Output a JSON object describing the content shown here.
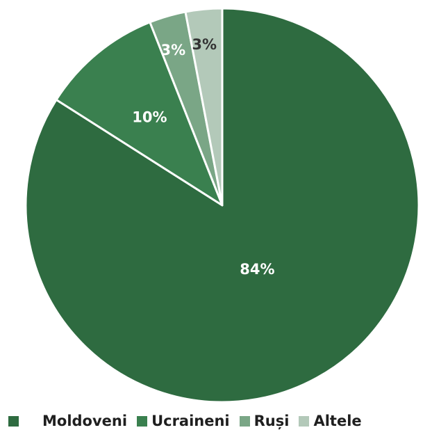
{
  "chart_data": {
    "type": "pie",
    "title": "",
    "categories": [
      "Moldoveni",
      "Ucraineni",
      "Ruși",
      "Altele"
    ],
    "values": [
      84,
      10,
      3,
      3
    ],
    "labels": [
      "84%",
      "10%",
      "3%",
      "3%"
    ],
    "colors": [
      "#2e6b40",
      "#3a804f",
      "#7aa686",
      "#b3c9b9"
    ],
    "label_colors": [
      "#ffffff",
      "#ffffff",
      "#ffffff",
      "#333333"
    ],
    "start_angle_deg": 0,
    "direction": "clockwise",
    "legend": {
      "position": "bottom"
    }
  }
}
